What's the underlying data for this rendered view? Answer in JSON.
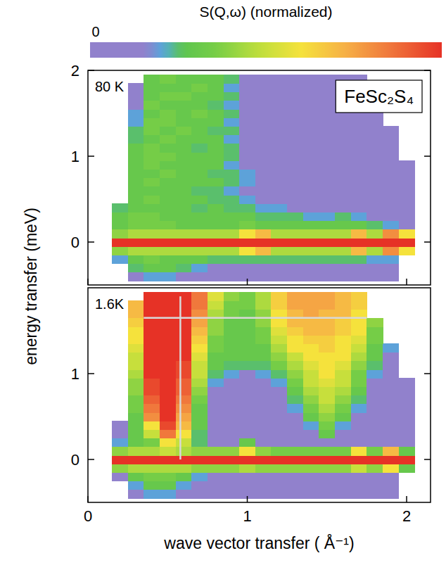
{
  "chart_data": [
    {
      "type": "heatmap",
      "title": "FeSc₂S₄",
      "annotation": "80 K",
      "ylabel": "energy transfer (meV)",
      "colorbar": {
        "label": "S(Q,ω) (normalized)",
        "range": [
          0,
          1
        ],
        "ticks": [
          0
        ]
      },
      "xlim": [
        0,
        2.15
      ],
      "ylim": [
        -0.5,
        2
      ],
      "xticks": [
        0,
        1,
        2
      ],
      "yticks": [
        0,
        1,
        2
      ],
      "tick_labels": "y",
      "x": [
        0.2,
        0.3,
        0.4,
        0.5,
        0.6,
        0.7,
        0.8,
        0.9,
        1.0,
        1.1,
        1.2,
        1.3,
        1.4,
        1.5,
        1.6,
        1.7,
        1.8,
        1.9,
        2.0
      ],
      "y": [
        -0.4,
        -0.3,
        -0.2,
        -0.1,
        0,
        0.1,
        0.2,
        0.3,
        0.4,
        0.5,
        0.6,
        0.7,
        0.8,
        0.9,
        1.0,
        1.1,
        1.2,
        1.3,
        1.4,
        1.5,
        1.6,
        1.7,
        1.8,
        1.9
      ],
      "z": [
        [
          null,
          0.1,
          0.2,
          0.2,
          0.15,
          0.1,
          0,
          0,
          0,
          0,
          0,
          0,
          0,
          0,
          0,
          0,
          0,
          0.1,
          null
        ],
        [
          null,
          0.25,
          0.3,
          0.3,
          0.25,
          0.2,
          0.15,
          0.1,
          0.1,
          0.1,
          0.1,
          0.1,
          0.1,
          0.1,
          0.1,
          0.1,
          0.1,
          0.1,
          null
        ],
        [
          0.2,
          0.3,
          0.35,
          0.3,
          0.3,
          0.3,
          0.25,
          0.25,
          0.25,
          0.25,
          0.25,
          0.25,
          0.25,
          0.25,
          0.25,
          0.25,
          0.2,
          0.2,
          null
        ],
        [
          0.4,
          0.45,
          0.45,
          0.45,
          0.45,
          0.45,
          0.45,
          0.45,
          0.6,
          0.7,
          0.45,
          0.45,
          0.45,
          0.45,
          0.45,
          0.7,
          0.45,
          0.8,
          0.6
        ],
        [
          1,
          1,
          1,
          1,
          1,
          1,
          1,
          1,
          1,
          1,
          1,
          1,
          1,
          1,
          1,
          1,
          1,
          1,
          1
        ],
        [
          0.4,
          0.45,
          0.45,
          0.45,
          0.45,
          0.45,
          0.45,
          0.45,
          0.6,
          0.7,
          0.45,
          0.45,
          0.45,
          0.45,
          0.45,
          0.7,
          0.45,
          0.8,
          0.6
        ],
        [
          0.3,
          0.35,
          0.35,
          0.35,
          0.3,
          0.3,
          0.3,
          0.3,
          0.35,
          0.3,
          0.3,
          0.3,
          0.3,
          0.3,
          0.3,
          0.3,
          0.25,
          0.2,
          0.1
        ],
        [
          0.3,
          0.35,
          0.35,
          0.3,
          0.3,
          0.3,
          0.3,
          0.3,
          0.3,
          0.25,
          0.25,
          0.25,
          0.2,
          0.2,
          0.25,
          0.2,
          0.1,
          0,
          0
        ],
        [
          0.25,
          0.3,
          0.3,
          0.3,
          0.3,
          0.25,
          0.3,
          0.25,
          0.25,
          0.2,
          0.2,
          0.1,
          0.1,
          0.1,
          0.1,
          0.1,
          0,
          0,
          0
        ],
        [
          null,
          0.3,
          0.35,
          0.3,
          0.3,
          0.3,
          0.25,
          0.25,
          0.2,
          0.1,
          0.1,
          0,
          0,
          0,
          0,
          0,
          0,
          0,
          0
        ],
        [
          null,
          0.3,
          0.3,
          0.3,
          0.3,
          0.25,
          0.25,
          0.2,
          0.15,
          0.1,
          0,
          0,
          0,
          0,
          0,
          0,
          0,
          0,
          0
        ],
        [
          null,
          0.3,
          0.35,
          0.3,
          0.3,
          0.3,
          0.3,
          0.25,
          0.2,
          0.1,
          0,
          0,
          0,
          0,
          0,
          0,
          0,
          0,
          0
        ],
        [
          null,
          0.3,
          0.3,
          0.35,
          0.3,
          0.3,
          0.25,
          0.25,
          0.2,
          0.1,
          0,
          0,
          0,
          0,
          0,
          0,
          0,
          0,
          0
        ],
        [
          null,
          0.3,
          0.35,
          0.3,
          0.3,
          0.3,
          0.3,
          0.2,
          0.15,
          0.05,
          0,
          0,
          0,
          0,
          0,
          0,
          0,
          0,
          0
        ],
        [
          null,
          0.3,
          0.35,
          0.35,
          0.3,
          0.3,
          0.3,
          0.25,
          0.15,
          0.05,
          0,
          0,
          0,
          0,
          0,
          0,
          0,
          0,
          null
        ],
        [
          null,
          0.3,
          0.35,
          0.3,
          0.3,
          0.25,
          0.3,
          0.25,
          0.15,
          0,
          0,
          0,
          0,
          0,
          0,
          0,
          0,
          0,
          null
        ],
        [
          null,
          0.25,
          0.3,
          0.35,
          0.3,
          0.3,
          0.3,
          0.2,
          0.1,
          0,
          0,
          0,
          0,
          0,
          0,
          0,
          0,
          0,
          null
        ],
        [
          null,
          0.25,
          0.35,
          0.3,
          0.35,
          0.3,
          0.25,
          0.25,
          0.15,
          0,
          0,
          0,
          0,
          0,
          0,
          0,
          0,
          0,
          null
        ],
        [
          null,
          0.2,
          0.35,
          0.35,
          0.3,
          0.3,
          0.3,
          0.2,
          0.1,
          0,
          0,
          0,
          0,
          0,
          0,
          0,
          0,
          null,
          null
        ],
        [
          null,
          0.2,
          0.3,
          0.35,
          0.3,
          0.35,
          0.3,
          0.25,
          0.1,
          0,
          0,
          0,
          0,
          0,
          0,
          0,
          0,
          null,
          null
        ],
        [
          null,
          0.15,
          0.35,
          0.3,
          0.3,
          0.3,
          0.25,
          0.2,
          0.15,
          0,
          0,
          0,
          0,
          0,
          0,
          0,
          0,
          null,
          null
        ],
        [
          null,
          0.15,
          0.3,
          0.35,
          0.35,
          0.3,
          0.3,
          0.25,
          0.1,
          0,
          0,
          0,
          0,
          0,
          0,
          0,
          0,
          null,
          null
        ],
        [
          null,
          0.1,
          0.3,
          0.3,
          0.3,
          0.35,
          0.3,
          0.2,
          0.1,
          0,
          0,
          0,
          0,
          0,
          0,
          0,
          null,
          null,
          null
        ],
        [
          null,
          null,
          0.3,
          0.35,
          0.3,
          0.3,
          0.3,
          0.25,
          0.1,
          0,
          0,
          0,
          0,
          0,
          0,
          0,
          null,
          null,
          null
        ]
      ]
    },
    {
      "type": "heatmap",
      "annotation": "1.6K",
      "xlabel": "wave vector transfer ( Å⁻¹)",
      "xlim": [
        0,
        2.15
      ],
      "ylim": [
        -0.5,
        2
      ],
      "xticks": [
        0,
        1,
        2
      ],
      "yticks": [
        0,
        1
      ],
      "x": [
        0.2,
        0.3,
        0.4,
        0.5,
        0.6,
        0.7,
        0.8,
        0.9,
        1.0,
        1.1,
        1.2,
        1.3,
        1.4,
        1.5,
        1.6,
        1.7,
        1.8,
        1.9,
        2.0
      ],
      "y": [
        -0.4,
        -0.3,
        -0.2,
        -0.1,
        0,
        0.1,
        0.2,
        0.3,
        0.4,
        0.5,
        0.6,
        0.7,
        0.8,
        0.9,
        1.0,
        1.1,
        1.2,
        1.3,
        1.4,
        1.5,
        1.6,
        1.7,
        1.8,
        1.9
      ],
      "z": [
        [
          null,
          0.1,
          0.2,
          0.2,
          0.1,
          0,
          0,
          0,
          0,
          0,
          0,
          0,
          0,
          0,
          0,
          0,
          0,
          0,
          null
        ],
        [
          null,
          0.2,
          0.3,
          0.3,
          0.2,
          0.1,
          0,
          0,
          0,
          0,
          0,
          0,
          0,
          0,
          0,
          0,
          0,
          0,
          null
        ],
        [
          0.1,
          0.3,
          0.35,
          0.35,
          0.3,
          0.2,
          0.1,
          0.1,
          0.1,
          0.1,
          0.1,
          0.1,
          0.1,
          0.1,
          0.1,
          0.1,
          0.1,
          0.1,
          null
        ],
        [
          0.4,
          0.45,
          0.45,
          0.45,
          0.45,
          0.4,
          0.4,
          0.4,
          0.45,
          0.4,
          0.4,
          0.4,
          0.4,
          0.4,
          0.4,
          0.5,
          0.4,
          0.6,
          0.3
        ],
        [
          1,
          1,
          1,
          1,
          1,
          1,
          1,
          1,
          1,
          1,
          1,
          1,
          1,
          1,
          1,
          1,
          1,
          1,
          1
        ],
        [
          0.4,
          0.45,
          0.45,
          0.5,
          0.45,
          0.4,
          0.4,
          0.4,
          0.6,
          0.4,
          0.35,
          0.35,
          0.35,
          0.35,
          0.35,
          0.6,
          0.35,
          0.7,
          0.3
        ],
        [
          0.2,
          0.3,
          0.35,
          0.6,
          0.5,
          0.25,
          0.1,
          0,
          0.3,
          0,
          0,
          0,
          0,
          0,
          0,
          0,
          0,
          0.1,
          0
        ],
        [
          0.15,
          0.3,
          0.5,
          0.85,
          0.6,
          0.25,
          0,
          0,
          0,
          0,
          0,
          0,
          0.1,
          0.3,
          0.1,
          0,
          0,
          0,
          0
        ],
        [
          0.1,
          0.3,
          0.6,
          0.95,
          0.7,
          0.3,
          0,
          0,
          0,
          0,
          0,
          0,
          0.2,
          0.35,
          0.2,
          0,
          0,
          0,
          0
        ],
        [
          null,
          0.3,
          0.8,
          1,
          0.75,
          0.3,
          0,
          0,
          0,
          0,
          0,
          0.1,
          0.3,
          0.4,
          0.3,
          0.1,
          0,
          0,
          0
        ],
        [
          null,
          0.35,
          0.85,
          1,
          0.8,
          0.3,
          0.05,
          0,
          0,
          0,
          0,
          0.2,
          0.35,
          0.45,
          0.35,
          0.2,
          0,
          0,
          0
        ],
        [
          null,
          0.35,
          0.9,
          1,
          0.85,
          0.35,
          0.1,
          0,
          0,
          0,
          0.1,
          0.25,
          0.4,
          0.5,
          0.4,
          0.25,
          0.1,
          0,
          0
        ],
        [
          null,
          0.4,
          0.95,
          1,
          0.9,
          0.4,
          0.15,
          0.05,
          0,
          0,
          0.15,
          0.3,
          0.45,
          0.5,
          0.45,
          0.3,
          0.1,
          0,
          0
        ],
        [
          null,
          0.4,
          0.95,
          1,
          0.9,
          0.45,
          0.2,
          0.1,
          0.05,
          0.1,
          0.2,
          0.35,
          0.5,
          0.55,
          0.5,
          0.35,
          0.15,
          0,
          0
        ],
        [
          null,
          0.45,
          1,
          1,
          0.95,
          0.5,
          0.25,
          0.2,
          0.15,
          0.2,
          0.25,
          0.4,
          0.5,
          0.6,
          0.5,
          0.35,
          0.2,
          0,
          null
        ],
        [
          null,
          0.5,
          1,
          1,
          0.95,
          0.5,
          0.3,
          0.25,
          0.25,
          0.25,
          0.35,
          0.45,
          0.55,
          0.6,
          0.55,
          0.4,
          0.25,
          0,
          null
        ],
        [
          null,
          0.5,
          1,
          1,
          1,
          0.55,
          0.3,
          0.3,
          0.3,
          0.3,
          0.4,
          0.5,
          0.6,
          0.6,
          0.6,
          0.45,
          0.3,
          0.1,
          null
        ],
        [
          null,
          0.55,
          1,
          1,
          1,
          0.6,
          0.35,
          0.3,
          0.3,
          0.3,
          0.45,
          0.6,
          0.6,
          0.65,
          0.6,
          0.5,
          0.3,
          0.2,
          null
        ],
        [
          null,
          0.6,
          1,
          1,
          1,
          0.65,
          0.35,
          0.3,
          0.3,
          0.35,
          0.5,
          0.6,
          0.65,
          0.65,
          0.6,
          0.55,
          0.35,
          null,
          null
        ],
        [
          null,
          0.6,
          1,
          1,
          1,
          0.7,
          0.4,
          0.3,
          0.3,
          0.35,
          0.55,
          0.65,
          0.7,
          0.7,
          0.65,
          0.6,
          0.35,
          null,
          null
        ],
        [
          null,
          0.65,
          1,
          1,
          1,
          0.75,
          0.4,
          0.3,
          0.3,
          0.4,
          0.6,
          0.7,
          0.7,
          0.7,
          0.65,
          0.6,
          0.4,
          null,
          null
        ],
        [
          null,
          0.7,
          1,
          1,
          1,
          0.8,
          0.45,
          0.35,
          0.3,
          0.4,
          0.6,
          0.7,
          0.75,
          0.7,
          0.7,
          0.6,
          null,
          null,
          null
        ],
        [
          null,
          0.7,
          1,
          1,
          1,
          0.85,
          0.5,
          0.35,
          0.35,
          0.45,
          0.65,
          0.75,
          0.75,
          0.75,
          0.7,
          0.65,
          null,
          null,
          null
        ],
        [
          null,
          null,
          1,
          1,
          1,
          0.85,
          0.55,
          0.4,
          0.35,
          0.45,
          0.65,
          0.75,
          0.75,
          0.75,
          0.7,
          0.65,
          null,
          null,
          null
        ]
      ],
      "cut_lines": [
        {
          "q": 0.58,
          "energy": [
            0,
            1.9
          ]
        },
        {
          "energy": 1.65,
          "q": [
            0.35,
            1.75
          ]
        }
      ]
    }
  ]
}
